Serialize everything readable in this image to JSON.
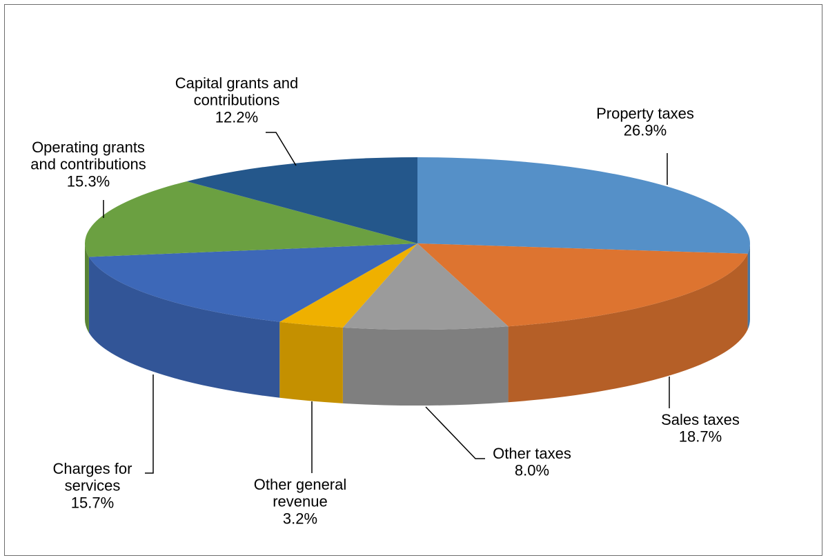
{
  "chart_data": {
    "type": "pie",
    "style": "3d",
    "title": "",
    "legend": "none",
    "slices": [
      {
        "name": "Property taxes",
        "value": 26.9,
        "label": "26.9%",
        "color": "#5590c8"
      },
      {
        "name": "Sales taxes",
        "value": 18.7,
        "label": "18.7%",
        "color": "#dd7430"
      },
      {
        "name": "Other taxes",
        "value": 8.0,
        "label": "8.0%",
        "color": "#9b9b9b"
      },
      {
        "name": "Other general revenue",
        "value": 3.2,
        "label": "3.2%",
        "color": "#efb000"
      },
      {
        "name": "Charges for services",
        "value": 15.7,
        "label": "15.7%",
        "color": "#3d68b8"
      },
      {
        "name": "Operating grants and contributions",
        "value": 15.3,
        "label": "15.3%",
        "color": "#6ba041"
      },
      {
        "name": "Capital grants and contributions",
        "value": 12.2,
        "label": "12.2%",
        "color": "#24578b"
      }
    ],
    "label_lines": {
      "Property taxes": [
        "Property taxes",
        "26.9%"
      ],
      "Sales taxes": [
        "Sales taxes",
        "18.7%"
      ],
      "Other taxes": [
        "Other taxes",
        "8.0%"
      ],
      "Other general revenue": [
        "Other general",
        "revenue",
        "3.2%"
      ],
      "Charges for services": [
        "Charges for",
        "services",
        "15.7%"
      ],
      "Operating grants and contributions": [
        "Operating grants",
        "and contributions",
        "15.3%"
      ],
      "Capital grants and contributions": [
        "Capital grants and",
        "contributions",
        "12.2%"
      ]
    }
  }
}
